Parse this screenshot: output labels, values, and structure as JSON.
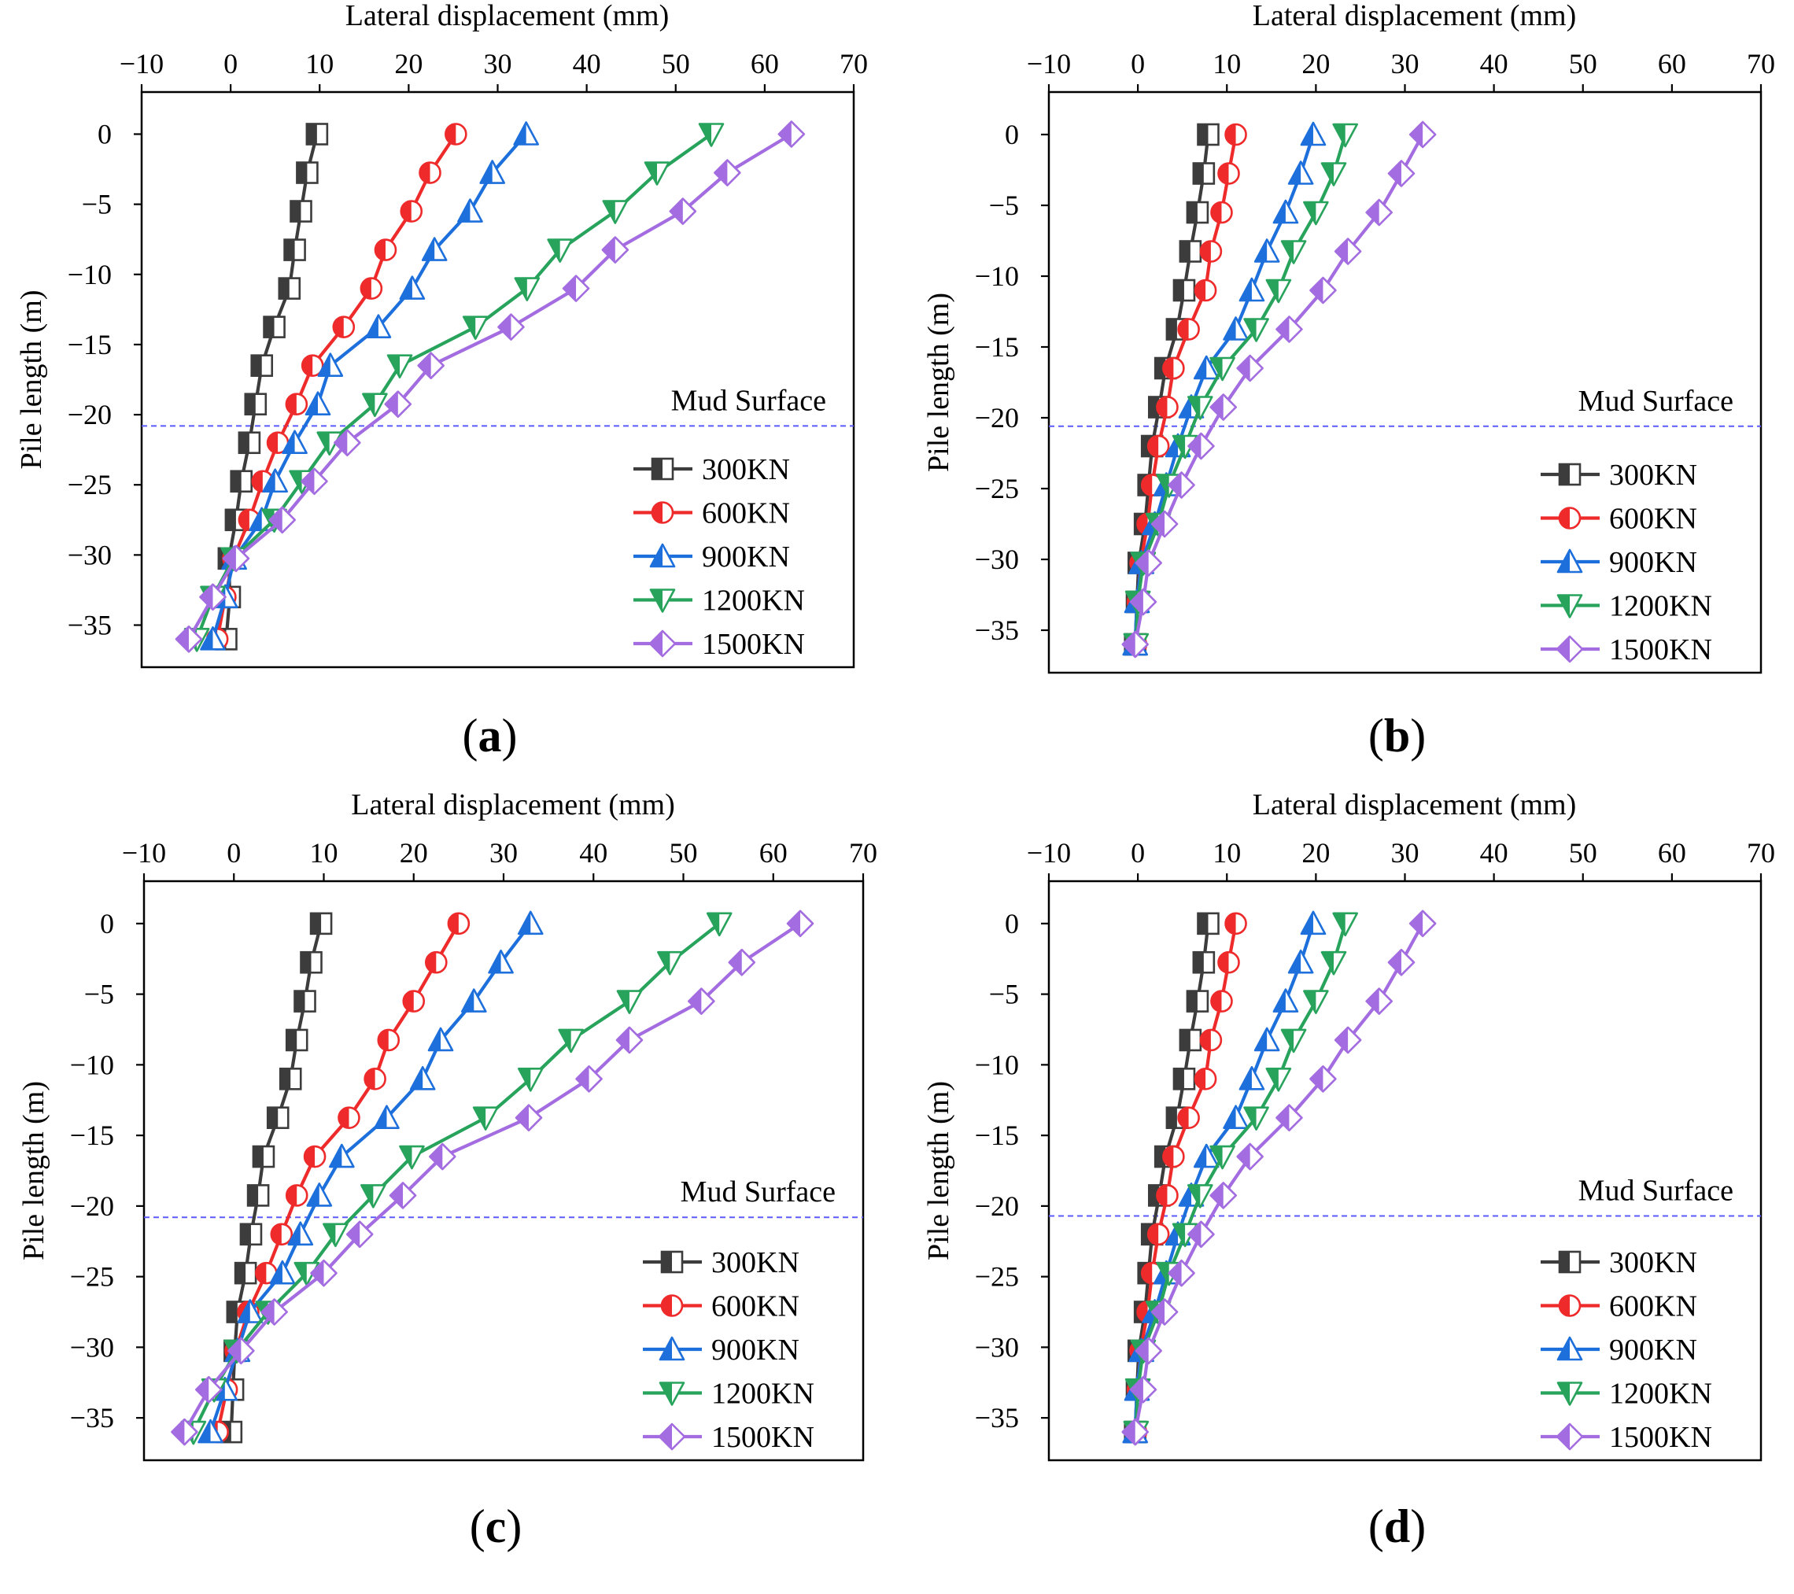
{
  "figure": {
    "series_names": [
      "300KN",
      "600KN",
      "900KN",
      "1200KN",
      "1500KN"
    ],
    "series_colors": [
      "#3c3c3c",
      "#ee2a2a",
      "#1d6fdc",
      "#27a35c",
      "#a36ce0"
    ],
    "series_markers": [
      "square",
      "circle",
      "triangle-up",
      "triangle-down",
      "diamond"
    ]
  },
  "chart_data": [
    {
      "type": "line",
      "panel_label": "a",
      "title": "",
      "xlabel": "Lateral displacement (mm)",
      "ylabel": "Pile length (m)",
      "xlim": [
        -10,
        70
      ],
      "ylim": [
        -38,
        3
      ],
      "xticks": [
        -10,
        0,
        10,
        20,
        30,
        40,
        50,
        60,
        70
      ],
      "yticks": [
        0,
        -5,
        -10,
        -15,
        -20,
        -25,
        -30,
        -35
      ],
      "x_axis_position": "top",
      "mud_surface": {
        "label": "Mud Surface",
        "y": -20.8
      },
      "legend_position": "bottom-right",
      "y": [
        0,
        -2.75,
        -5.5,
        -8.25,
        -11,
        -13.75,
        -16.5,
        -19.25,
        -22,
        -24.75,
        -27.5,
        -30.25,
        -33,
        -36
      ],
      "series": [
        {
          "name": "300KN",
          "x": [
            9.7,
            8.6,
            7.9,
            7.2,
            6.6,
            4.9,
            3.5,
            2.8,
            2.1,
            1.2,
            0.6,
            -0.2,
            -0.1,
            -0.5
          ]
        },
        {
          "name": "600KN",
          "x": [
            25.3,
            22.4,
            20.3,
            17.4,
            15.8,
            12.7,
            9.2,
            7.4,
            5.3,
            3.6,
            2.1,
            0.3,
            -0.6,
            -1.5
          ]
        },
        {
          "name": "900KN",
          "x": [
            33.2,
            29.4,
            26.9,
            22.9,
            20.4,
            16.6,
            11.2,
            9.8,
            7.2,
            5.0,
            3.5,
            0.4,
            -0.6,
            -2.0
          ]
        },
        {
          "name": "1200KN",
          "x": [
            54.0,
            47.9,
            43.2,
            37.0,
            33.3,
            27.5,
            19.0,
            16.2,
            11.1,
            8.0,
            4.9,
            0.3,
            -2.0,
            -3.8
          ]
        },
        {
          "name": "1500KN",
          "x": [
            63.0,
            55.8,
            50.8,
            43.2,
            38.8,
            31.5,
            22.5,
            18.8,
            13.1,
            9.4,
            5.8,
            0.6,
            -2.0,
            -4.7
          ]
        }
      ]
    },
    {
      "type": "line",
      "panel_label": "b",
      "title": "",
      "xlabel": "Lateral displacement (mm)",
      "ylabel": "Pile length (m)",
      "xlim": [
        -10,
        70
      ],
      "ylim": [
        -38,
        3
      ],
      "xticks": [
        -10,
        0,
        10,
        20,
        30,
        40,
        50,
        60,
        70
      ],
      "yticks": [
        0,
        -5,
        -10,
        -15,
        -20,
        -25,
        -30,
        -35
      ],
      "x_axis_position": "top",
      "mud_surface": {
        "label": "Mud Surface",
        "y": -20.6
      },
      "legend_position": "bottom-right",
      "y": [
        0,
        -2.75,
        -5.5,
        -8.25,
        -11,
        -13.75,
        -16.5,
        -19.25,
        -22,
        -24.75,
        -27.5,
        -30.25,
        -33,
        -36
      ],
      "series": [
        {
          "name": "300KN",
          "x": [
            7.9,
            7.4,
            6.7,
            5.9,
            5.2,
            4.4,
            3.1,
            2.4,
            1.6,
            1.2,
            0.8,
            0.1,
            -0.1,
            -0.3
          ]
        },
        {
          "name": "600KN",
          "x": [
            11.0,
            10.2,
            9.4,
            8.2,
            7.6,
            5.7,
            4.0,
            3.3,
            2.3,
            1.6,
            1.1,
            0.3,
            0.0,
            -0.2
          ]
        },
        {
          "name": "900KN",
          "x": [
            19.7,
            18.3,
            16.6,
            14.5,
            12.8,
            11.0,
            7.7,
            6.0,
            4.5,
            3.2,
            1.9,
            0.4,
            -0.1,
            -0.3
          ]
        },
        {
          "name": "1200KN",
          "x": [
            23.3,
            22.0,
            20.0,
            17.5,
            15.8,
            13.3,
            9.5,
            7.0,
            5.3,
            3.5,
            2.3,
            0.6,
            0.0,
            -0.2
          ]
        },
        {
          "name": "1500KN",
          "x": [
            32.0,
            29.6,
            27.1,
            23.6,
            20.8,
            17.0,
            12.6,
            9.6,
            7.1,
            4.9,
            3.0,
            1.2,
            0.6,
            -0.3
          ]
        }
      ]
    },
    {
      "type": "line",
      "panel_label": "c",
      "title": "",
      "xlabel": "Lateral displacement (mm)",
      "ylabel": "Pile length (m)",
      "xlim": [
        -10,
        70
      ],
      "ylim": [
        -38,
        3
      ],
      "xticks": [
        -10,
        0,
        10,
        20,
        30,
        40,
        50,
        60,
        70
      ],
      "yticks": [
        0,
        -5,
        -10,
        -15,
        -20,
        -25,
        -30,
        -35
      ],
      "x_axis_position": "top",
      "mud_surface": {
        "label": "Mud Surface",
        "y": -20.8
      },
      "legend_position": "bottom-right",
      "y": [
        0,
        -2.75,
        -5.5,
        -8.25,
        -11,
        -13.75,
        -16.5,
        -19.25,
        -22,
        -24.75,
        -27.5,
        -30.25,
        -33,
        -36
      ],
      "series": [
        {
          "name": "300KN",
          "x": [
            9.7,
            8.6,
            7.9,
            7.0,
            6.3,
            4.9,
            3.3,
            2.7,
            1.9,
            1.3,
            0.4,
            0.1,
            -0.1,
            -0.3
          ]
        },
        {
          "name": "600KN",
          "x": [
            25.0,
            22.5,
            20.0,
            17.2,
            15.7,
            12.8,
            9.0,
            7.0,
            5.3,
            3.6,
            1.6,
            0.2,
            -0.8,
            -1.8
          ]
        },
        {
          "name": "900KN",
          "x": [
            33.0,
            29.7,
            26.7,
            23.0,
            21.0,
            17.0,
            12.0,
            9.5,
            7.4,
            5.4,
            1.8,
            0.4,
            -1.0,
            -2.6
          ]
        },
        {
          "name": "1200KN",
          "x": [
            54.0,
            48.5,
            44.0,
            37.5,
            33.0,
            28.0,
            19.8,
            15.5,
            11.3,
            8.1,
            3.8,
            0.3,
            -2.2,
            -4.5
          ]
        },
        {
          "name": "1500KN",
          "x": [
            63.0,
            56.5,
            52.0,
            44.0,
            39.5,
            32.8,
            23.2,
            18.8,
            14.0,
            10.0,
            4.5,
            0.8,
            -2.8,
            -5.5
          ]
        }
      ]
    },
    {
      "type": "line",
      "panel_label": "d",
      "title": "",
      "xlabel": "Lateral displacement (mm)",
      "ylabel": "Pile length (m)",
      "xlim": [
        -10,
        70
      ],
      "ylim": [
        -38,
        3
      ],
      "xticks": [
        -10,
        0,
        10,
        20,
        30,
        40,
        50,
        60,
        70
      ],
      "yticks": [
        0,
        -5,
        -10,
        -15,
        -20,
        -25,
        -30,
        -35
      ],
      "x_axis_position": "top",
      "mud_surface": {
        "label": "Mud Surface",
        "y": -20.7
      },
      "legend_position": "bottom-right",
      "y": [
        0,
        -2.75,
        -5.5,
        -8.25,
        -11,
        -13.75,
        -16.5,
        -19.25,
        -22,
        -24.75,
        -27.5,
        -30.25,
        -33,
        -36
      ],
      "series": [
        {
          "name": "300KN",
          "x": [
            7.9,
            7.4,
            6.7,
            5.9,
            5.2,
            4.4,
            3.1,
            2.4,
            1.6,
            1.2,
            0.8,
            0.1,
            -0.1,
            -0.3
          ]
        },
        {
          "name": "600KN",
          "x": [
            11.0,
            10.2,
            9.4,
            8.2,
            7.6,
            5.7,
            4.0,
            3.3,
            2.3,
            1.6,
            1.1,
            0.3,
            0.0,
            -0.2
          ]
        },
        {
          "name": "900KN",
          "x": [
            19.7,
            18.3,
            16.6,
            14.5,
            12.8,
            11.0,
            7.7,
            6.0,
            4.5,
            3.2,
            1.9,
            0.4,
            -0.1,
            -0.3
          ]
        },
        {
          "name": "1200KN",
          "x": [
            23.3,
            22.0,
            20.0,
            17.5,
            15.8,
            13.3,
            9.5,
            7.0,
            5.3,
            3.5,
            2.3,
            0.6,
            0.0,
            -0.2
          ]
        },
        {
          "name": "1500KN",
          "x": [
            32.0,
            29.6,
            27.1,
            23.6,
            20.8,
            17.0,
            12.6,
            9.6,
            7.1,
            4.9,
            3.0,
            1.2,
            0.6,
            -0.3
          ]
        }
      ]
    }
  ]
}
